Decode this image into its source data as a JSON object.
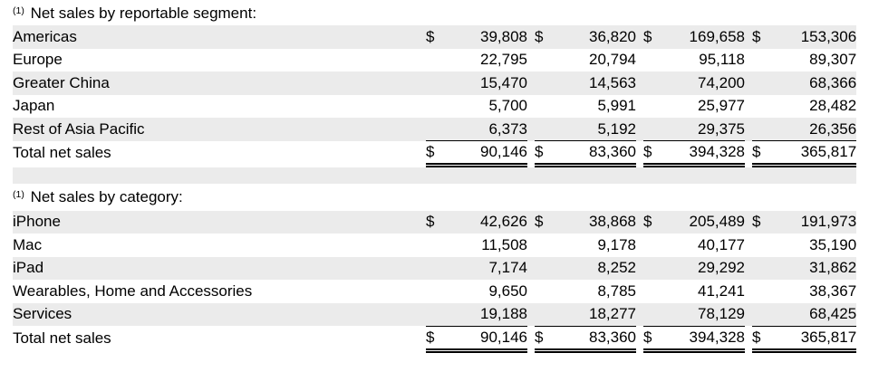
{
  "currency_symbol": "$",
  "colors": {
    "row_shade": "#ebebeb",
    "text": "#000000",
    "background": "#ffffff"
  },
  "tables": [
    {
      "header": {
        "superscript": "(1)",
        "label": "Net sales by reportable segment:"
      },
      "rows": [
        {
          "label": "Americas",
          "dollar": true,
          "values": [
            "39,808",
            "36,820",
            "169,658",
            "153,306"
          ]
        },
        {
          "label": "Europe",
          "dollar": false,
          "values": [
            "22,795",
            "20,794",
            "95,118",
            "89,307"
          ]
        },
        {
          "label": "Greater China",
          "dollar": false,
          "values": [
            "15,470",
            "14,563",
            "74,200",
            "68,366"
          ]
        },
        {
          "label": "Japan",
          "dollar": false,
          "values": [
            "5,700",
            "5,991",
            "25,977",
            "28,482"
          ]
        },
        {
          "label": "Rest of Asia Pacific",
          "dollar": false,
          "values": [
            "6,373",
            "5,192",
            "29,375",
            "26,356"
          ]
        }
      ],
      "total": {
        "label": "Total net sales",
        "dollar": true,
        "values": [
          "90,146",
          "83,360",
          "394,328",
          "365,817"
        ]
      }
    },
    {
      "header": {
        "superscript": "(1)",
        "label": "Net sales by category:"
      },
      "rows": [
        {
          "label": "iPhone",
          "dollar": true,
          "values": [
            "42,626",
            "38,868",
            "205,489",
            "191,973"
          ]
        },
        {
          "label": "Mac",
          "dollar": false,
          "values": [
            "11,508",
            "9,178",
            "40,177",
            "35,190"
          ]
        },
        {
          "label": "iPad",
          "dollar": false,
          "values": [
            "7,174",
            "8,252",
            "29,292",
            "31,862"
          ]
        },
        {
          "label": "Wearables, Home and Accessories",
          "dollar": false,
          "values": [
            "9,650",
            "8,785",
            "41,241",
            "38,367"
          ]
        },
        {
          "label": "Services",
          "dollar": false,
          "values": [
            "19,188",
            "18,277",
            "78,129",
            "68,425"
          ]
        }
      ],
      "total": {
        "label": "Total net sales",
        "dollar": true,
        "values": [
          "90,146",
          "83,360",
          "394,328",
          "365,817"
        ]
      }
    }
  ]
}
